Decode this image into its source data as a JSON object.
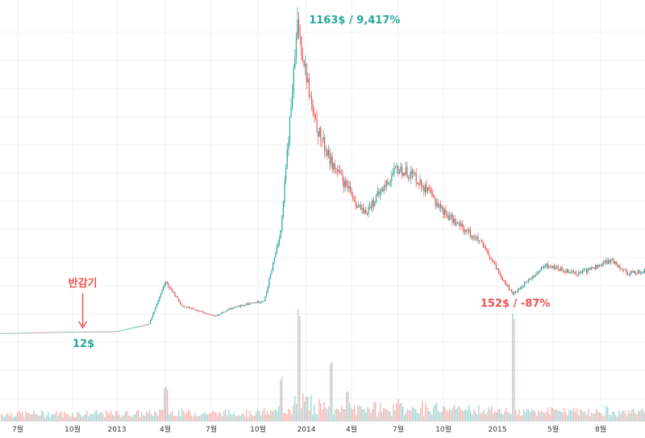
{
  "chart_data": {
    "type": "candlestick",
    "x_tick_labels": [
      "7월",
      "10월",
      "2013",
      "4월",
      "7월",
      "10월",
      "2014",
      "4월",
      "7월",
      "10월",
      "2015",
      "5월",
      "8월"
    ],
    "price_ylim": [
      0,
      1200
    ],
    "volume_ylim": [
      0,
      100
    ],
    "price_path": [
      {
        "date": "2012-06",
        "price": 6
      },
      {
        "date": "2012-09",
        "price": 10
      },
      {
        "date": "2012-11",
        "price": 12
      },
      {
        "date": "2013-01",
        "price": 13
      },
      {
        "date": "2013-03",
        "price": 40
      },
      {
        "date": "2013-04",
        "price": 200
      },
      {
        "date": "2013-05",
        "price": 110
      },
      {
        "date": "2013-07",
        "price": 70
      },
      {
        "date": "2013-08",
        "price": 100
      },
      {
        "date": "2013-10",
        "price": 130
      },
      {
        "date": "2013-11",
        "price": 400
      },
      {
        "date": "2013-12",
        "price": 1163
      },
      {
        "date": "2014-01",
        "price": 800
      },
      {
        "date": "2014-02",
        "price": 650
      },
      {
        "date": "2014-04",
        "price": 450
      },
      {
        "date": "2014-06",
        "price": 620
      },
      {
        "date": "2014-07",
        "price": 600
      },
      {
        "date": "2014-09",
        "price": 450
      },
      {
        "date": "2014-11",
        "price": 350
      },
      {
        "date": "2015-01",
        "price": 152
      },
      {
        "date": "2015-03",
        "price": 260
      },
      {
        "date": "2015-05",
        "price": 230
      },
      {
        "date": "2015-07",
        "price": 280
      },
      {
        "date": "2015-08",
        "price": 230
      },
      {
        "date": "2015-09",
        "price": 240
      }
    ],
    "volume_spikes": [
      {
        "date": "2013-04",
        "value": 30
      },
      {
        "date": "2013-11",
        "value": 40
      },
      {
        "date": "2013-12",
        "value": 100
      },
      {
        "date": "2014-02",
        "value": 55
      },
      {
        "date": "2014-03",
        "value": 25
      },
      {
        "date": "2015-01",
        "value": 95
      }
    ],
    "annotations": [
      {
        "text": "1163$ / 9,417%",
        "color": "#26a69a",
        "date": "2013-12",
        "price": 1163,
        "placement": "right"
      },
      {
        "text": "152$ / -87%",
        "color": "#ef5350",
        "date": "2015-01",
        "price": 152,
        "placement": "below-left"
      },
      {
        "text": "반감기",
        "color": "#ef5350",
        "date": "2012-11",
        "price": 12,
        "placement": "above-arrow"
      },
      {
        "text": "12$",
        "color": "#26a69a",
        "date": "2012-11",
        "price": 12,
        "placement": "below"
      }
    ],
    "colors": {
      "up": "#26a69a",
      "down": "#ef5350",
      "grid": "#eef0f3",
      "axis_text": "#333333"
    }
  }
}
